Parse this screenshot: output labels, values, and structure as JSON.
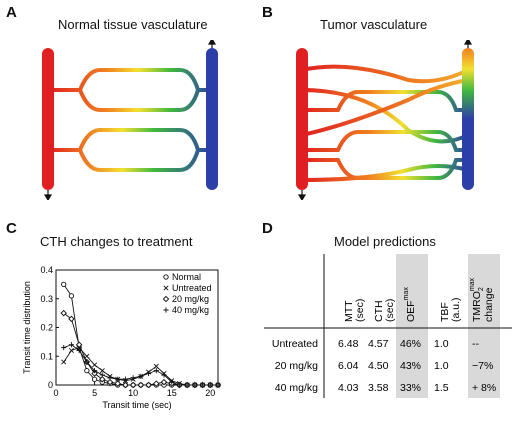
{
  "panels": {
    "A": {
      "letter": "A",
      "title": "Normal tissue vasculature"
    },
    "B": {
      "letter": "B",
      "title": "Tumor vasculature"
    },
    "C": {
      "letter": "C",
      "title": "CTH changes to treatment"
    },
    "D": {
      "letter": "D",
      "title": "Model predictions"
    }
  },
  "chart_data": {
    "type": "line",
    "title": "CTH changes to treatment",
    "xlabel": "Transit time (sec)",
    "ylabel": "Transit time distribution",
    "xlim": [
      0,
      21
    ],
    "ylim": [
      0,
      0.4
    ],
    "xticks": [
      0,
      5,
      10,
      15,
      20
    ],
    "yticks": [
      0,
      0.1,
      0.2,
      0.3,
      0.4
    ],
    "x": [
      1,
      2,
      3,
      4,
      5,
      6,
      7,
      8,
      9,
      10,
      11,
      12,
      13,
      14,
      15,
      16,
      17,
      18,
      19,
      20,
      21
    ],
    "series": [
      {
        "name": "Normal",
        "marker": "o",
        "values": [
          0.35,
          0.31,
          0.13,
          0.05,
          0.02,
          0.01,
          0.005,
          0,
          0,
          0,
          0,
          0,
          0,
          0,
          0,
          0,
          0,
          0,
          0,
          0,
          0
        ]
      },
      {
        "name": "Untreated",
        "marker": "x",
        "values": [
          0.08,
          0.12,
          0.13,
          0.1,
          0.07,
          0.05,
          0.03,
          0.02,
          0.015,
          0.02,
          0.03,
          0.045,
          0.065,
          0.04,
          0.015,
          0.005,
          0,
          0,
          0,
          0,
          0
        ]
      },
      {
        "name": "20 mg/kg",
        "marker": "diamond",
        "values": [
          0.25,
          0.23,
          0.14,
          0.08,
          0.04,
          0.02,
          0.01,
          0.005,
          0,
          0,
          0,
          0,
          0.005,
          0.01,
          0.005,
          0,
          0,
          0,
          0,
          0,
          0
        ]
      },
      {
        "name": "40 mg/kg",
        "marker": "+",
        "values": [
          0.13,
          0.14,
          0.12,
          0.08,
          0.05,
          0.035,
          0.025,
          0.02,
          0.02,
          0.025,
          0.03,
          0.04,
          0.05,
          0.035,
          0.01,
          0,
          0,
          0,
          0,
          0,
          0
        ]
      }
    ]
  },
  "table": {
    "columns": [
      {
        "label": "MTT",
        "sub": "(sec)",
        "shaded": false
      },
      {
        "label": "CTH",
        "sub": "(sec)",
        "shaded": false
      },
      {
        "label": "OEF",
        "sup": "max",
        "shaded": true
      },
      {
        "label": "TBF",
        "sub": "(a.u.)",
        "shaded": false
      },
      {
        "label": "TMRO",
        "sub2": "2",
        "sup": "max",
        "line2": "change",
        "shaded": true
      }
    ],
    "rows": [
      {
        "label": "Untreated",
        "values": [
          "6.48",
          "4.57",
          "46%",
          "1.0",
          "--"
        ]
      },
      {
        "label": "20 mg/kg",
        "values": [
          "6.04",
          "4.50",
          "43%",
          "1.0",
          "−7%"
        ]
      },
      {
        "label": "40 mg/kg",
        "values": [
          "4.03",
          "3.58",
          "33%",
          "1.5",
          "+ 8%"
        ]
      }
    ],
    "shade_color": "#d9d9d9"
  },
  "colors": {
    "artery": "#e02020",
    "vein": "#2c3fa8",
    "gradient": [
      "#e02020",
      "#f08020",
      "#f2e030",
      "#40b840",
      "#2c3fa8"
    ]
  }
}
